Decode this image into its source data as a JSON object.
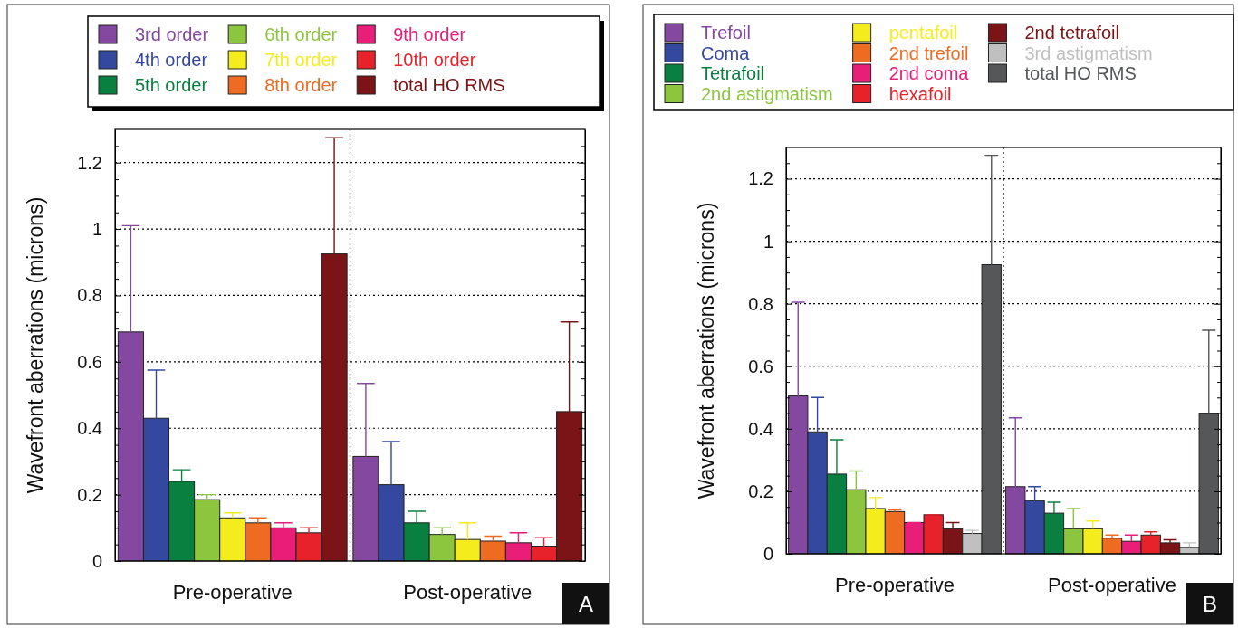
{
  "chart_data": [
    {
      "type": "bar",
      "categories": [
        "Pre-operative",
        "Post-operative"
      ],
      "ylabel": "Wavefront aberrations (microns)",
      "ylim": [
        0,
        1.3
      ],
      "yticks": [
        0,
        {
          "value": 0.05,
          "label": null
        },
        {
          "value": 0.1,
          "label": null
        },
        {
          "value": 0.15,
          "label": null
        },
        0.2,
        {
          "value": 0.25,
          "label": null
        },
        {
          "value": 0.3,
          "label": null
        },
        {
          "value": 0.35,
          "label": null
        },
        0.4,
        {
          "value": 0.45,
          "label": null
        },
        {
          "value": 0.5,
          "label": null
        },
        {
          "value": 0.55,
          "label": null
        },
        0.6,
        {
          "value": 0.65,
          "label": null
        },
        {
          "value": 0.7,
          "label": null
        },
        {
          "value": 0.75,
          "label": null
        },
        0.8,
        {
          "value": 0.85,
          "label": null
        },
        {
          "value": 0.9,
          "label": null
        },
        {
          "value": 0.95,
          "label": null
        },
        1,
        {
          "value": 1.05,
          "label": null
        },
        {
          "value": 1.1,
          "label": null
        },
        {
          "value": 1.15,
          "label": null
        },
        1.2,
        {
          "value": 1.25,
          "label": null
        }
      ],
      "grid": true,
      "legend": "top",
      "annotations": [
        "A"
      ],
      "series": [
        {
          "name": "3rd order",
          "color": "#8548a0",
          "values": [
            0.69,
            0.315
          ],
          "errors": [
            [
              0.69,
              1.01
            ],
            [
              0.315,
              0.535
            ]
          ]
        },
        {
          "name": "4th order",
          "color": "#3548a0",
          "values": [
            0.43,
            0.23
          ],
          "errors": [
            [
              0.43,
              0.575
            ],
            [
              0.23,
              0.36
            ]
          ]
        },
        {
          "name": "5th order",
          "color": "#0a8040",
          "values": [
            0.24,
            0.115
          ],
          "errors": [
            [
              0.24,
              0.275
            ],
            [
              0.115,
              0.15
            ]
          ]
        },
        {
          "name": "6th order",
          "color": "#8cc63f",
          "values": [
            0.185,
            0.08
          ],
          "errors": [
            [
              0.185,
              0.2
            ],
            [
              0.08,
              0.1
            ]
          ]
        },
        {
          "name": "7th order",
          "color": "#f5ec1e",
          "values": [
            0.13,
            0.065
          ],
          "errors": [
            [
              0.13,
              0.145
            ],
            [
              0.065,
              0.115
            ]
          ]
        },
        {
          "name": "8th order",
          "color": "#ee6b22",
          "values": [
            0.115,
            0.06
          ],
          "errors": [
            [
              0.115,
              0.13
            ],
            [
              0.06,
              0.075
            ]
          ]
        },
        {
          "name": "9th order",
          "color": "#e91e78",
          "values": [
            0.1,
            0.055
          ],
          "errors": [
            [
              0.1,
              0.115
            ],
            [
              0.055,
              0.085
            ]
          ]
        },
        {
          "name": "10th order",
          "color": "#e8222a",
          "values": [
            0.085,
            0.045
          ],
          "errors": [
            [
              0.085,
              0.1
            ],
            [
              0.045,
              0.07
            ]
          ]
        },
        {
          "name": "total HO RMS",
          "color": "#7a1416",
          "values": [
            0.925,
            0.45
          ],
          "errors": [
            [
              0.925,
              1.275
            ],
            [
              0.45,
              0.72
            ]
          ]
        }
      ]
    },
    {
      "type": "bar",
      "categories": [
        "Pre-operative",
        "Post-operative"
      ],
      "ylabel": "Wavefront aberrations (microns)",
      "ylim": [
        0,
        1.3
      ],
      "yticks": [
        0,
        {
          "value": 0.05,
          "label": null
        },
        {
          "value": 0.1,
          "label": null
        },
        {
          "value": 0.15,
          "label": null
        },
        0.2,
        {
          "value": 0.25,
          "label": null
        },
        {
          "value": 0.3,
          "label": null
        },
        {
          "value": 0.35,
          "label": null
        },
        0.4,
        {
          "value": 0.45,
          "label": null
        },
        {
          "value": 0.5,
          "label": null
        },
        {
          "value": 0.55,
          "label": null
        },
        0.6,
        {
          "value": 0.65,
          "label": null
        },
        {
          "value": 0.7,
          "label": null
        },
        {
          "value": 0.75,
          "label": null
        },
        0.8,
        {
          "value": 0.85,
          "label": null
        },
        {
          "value": 0.9,
          "label": null
        },
        {
          "value": 0.95,
          "label": null
        },
        1,
        {
          "value": 1.05,
          "label": null
        },
        {
          "value": 1.1,
          "label": null
        },
        {
          "value": 1.15,
          "label": null
        },
        1.2,
        {
          "value": 1.25,
          "label": null
        }
      ],
      "grid": true,
      "legend": "top",
      "annotations": [
        "B"
      ],
      "series": [
        {
          "name": "Trefoil",
          "color": "#8548a0",
          "values": [
            0.505,
            0.215
          ],
          "errors": [
            [
              0.505,
              0.805
            ],
            [
              0.215,
              0.435
            ]
          ]
        },
        {
          "name": "Coma",
          "color": "#3548a0",
          "values": [
            0.39,
            0.17
          ],
          "errors": [
            [
              0.39,
              0.5
            ],
            [
              0.17,
              0.215
            ]
          ]
        },
        {
          "name": "Tetrafoil",
          "color": "#0a8040",
          "values": [
            0.255,
            0.13
          ],
          "errors": [
            [
              0.255,
              0.365
            ],
            [
              0.13,
              0.165
            ]
          ]
        },
        {
          "name": "2nd astigmatism",
          "color": "#8cc63f",
          "values": [
            0.205,
            0.08
          ],
          "errors": [
            [
              0.205,
              0.265
            ],
            [
              0.08,
              0.145
            ]
          ]
        },
        {
          "name": "pentafoil",
          "color": "#f5ec1e",
          "values": [
            0.145,
            0.08
          ],
          "errors": [
            [
              0.145,
              0.18
            ],
            [
              0.08,
              0.105
            ]
          ]
        },
        {
          "name": "2nd trefoil",
          "color": "#ee6b22",
          "values": [
            0.135,
            0.05
          ],
          "errors": [
            [
              0.135,
              0.14
            ],
            [
              0.05,
              0.06
            ]
          ]
        },
        {
          "name": "2nd coma",
          "color": "#e91e78",
          "values": [
            0.1,
            0.04
          ],
          "errors": [
            [
              0.1,
              0.1
            ],
            [
              0.04,
              0.06
            ]
          ]
        },
        {
          "name": "hexafoil",
          "color": "#e8222a",
          "values": [
            0.125,
            0.06
          ],
          "errors": [
            [
              0.125,
              0.125
            ],
            [
              0.06,
              0.07
            ]
          ]
        },
        {
          "name": "2nd tetrafoil",
          "color": "#7a1416",
          "values": [
            0.08,
            0.035
          ],
          "errors": [
            [
              0.08,
              0.1
            ],
            [
              0.035,
              0.045
            ]
          ]
        },
        {
          "name": "3rd astigmatism",
          "color": "#c0c0c0",
          "values": [
            0.065,
            0.02
          ],
          "errors": [
            [
              0.065,
              0.075
            ],
            [
              0.02,
              0.035
            ]
          ]
        },
        {
          "name": "total HO RMS",
          "color": "#555759",
          "values": [
            0.925,
            0.45
          ],
          "errors": [
            [
              0.925,
              1.275
            ],
            [
              0.45,
              0.715
            ]
          ]
        }
      ]
    }
  ]
}
